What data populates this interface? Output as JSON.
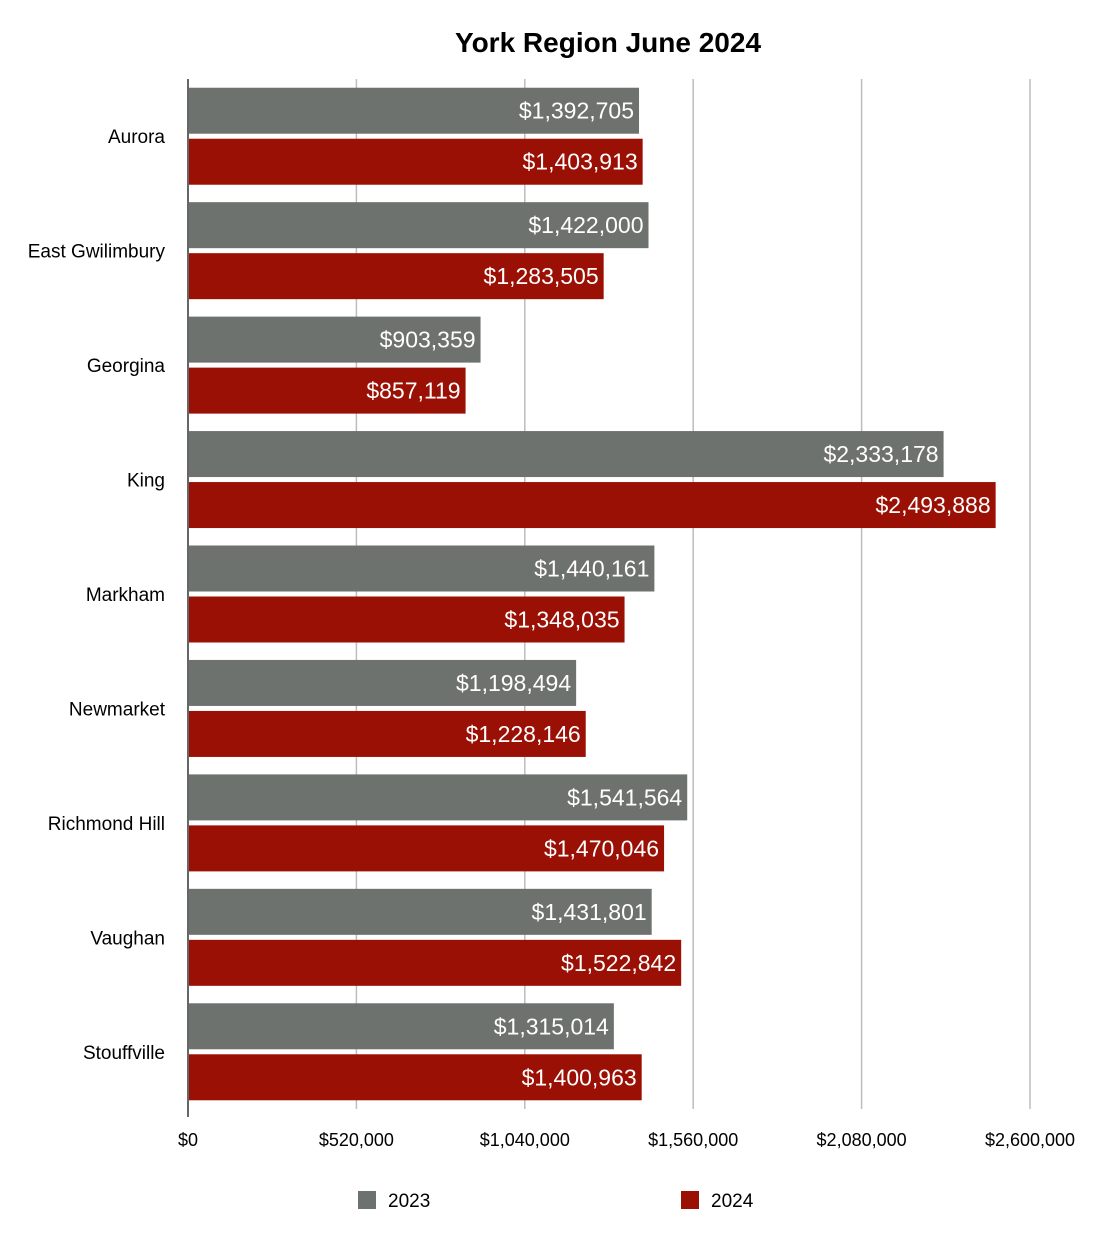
{
  "chart_data": {
    "type": "bar",
    "orientation": "horizontal",
    "title": "York Region June 2024",
    "xlabel": "",
    "ylabel": "",
    "categories": [
      "Aurora",
      "East Gwilimbury",
      "Georgina",
      "King",
      "Markham",
      "Newmarket",
      "Richmond Hill",
      "Vaughan",
      "Stouffville"
    ],
    "series": [
      {
        "name": "2023",
        "color": "#6e726f",
        "values": [
          1392705,
          1422000,
          903359,
          2333178,
          1440161,
          1198494,
          1541564,
          1431801,
          1315014
        ],
        "labels": [
          "$1,392,705",
          "$1,422,000",
          "$903,359",
          "$2,333,178",
          "$1,440,161",
          "$1,198,494",
          "$1,541,564",
          "$1,431,801",
          "$1,315,014"
        ]
      },
      {
        "name": "2024",
        "color": "#9b1005",
        "values": [
          1403913,
          1283505,
          857119,
          2493888,
          1348035,
          1228146,
          1470046,
          1522842,
          1400963
        ],
        "labels": [
          "$1,403,913",
          "$1,283,505",
          "$857,119",
          "$2,493,888",
          "$1,348,035",
          "$1,228,146",
          "$1,470,046",
          "$1,522,842",
          "$1,400,963"
        ]
      }
    ],
    "xlim": [
      0,
      2600000
    ],
    "ticks": [
      0,
      520000,
      1040000,
      1560000,
      2080000,
      2600000
    ],
    "tick_labels": [
      "$0",
      "$520,000",
      "$1,040,000",
      "$1,560,000",
      "$2,080,000",
      "$2,600,000"
    ],
    "grid": true,
    "legend": "bottom"
  }
}
